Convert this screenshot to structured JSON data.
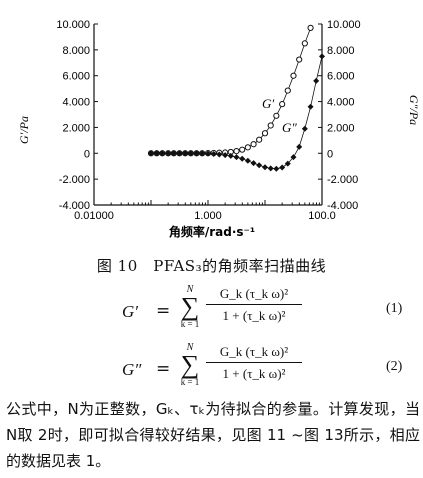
{
  "chart_data": {
    "type": "scatter",
    "x_scale": "log",
    "xlim": [
      0.01,
      100
    ],
    "ylim": [
      -4000,
      10000
    ],
    "x_ticks": [
      "0.01000",
      "1.000",
      "100.0"
    ],
    "y_ticks_left": [
      "-4.000",
      "-2.000",
      "0",
      "2.000",
      "4.000",
      "6.000",
      "8.000",
      "10.000"
    ],
    "y_ticks_right": [
      "-4.000",
      "-2.000",
      "0",
      "2.000",
      "4.000",
      "6.000",
      "8.000",
      "10.000"
    ],
    "xlabel": "角频率/rad·s⁻¹",
    "ylabel_left": "G′/Pa",
    "ylabel_right": "G″/Pa",
    "series": [
      {
        "name": "G′",
        "marker": "open-circle",
        "x": [
          0.1,
          0.126,
          0.158,
          0.2,
          0.251,
          0.316,
          0.398,
          0.5,
          0.63,
          0.79,
          1,
          1.26,
          1.58,
          2,
          2.51,
          3.16,
          3.98,
          5,
          6.3,
          7.9,
          10,
          12.6,
          15.8,
          20,
          25.1,
          31.6,
          39.8,
          50,
          63
        ],
        "y": [
          0,
          0,
          0,
          0,
          0,
          0,
          0,
          0,
          0,
          0,
          10,
          20,
          40,
          60,
          100,
          170,
          280,
          460,
          700,
          1050,
          1550,
          2150,
          2900,
          3800,
          4850,
          6000,
          7250,
          8500,
          9700
        ]
      },
      {
        "name": "G″",
        "marker": "filled-diamond",
        "x": [
          0.1,
          0.126,
          0.158,
          0.2,
          0.251,
          0.316,
          0.398,
          0.5,
          0.63,
          0.79,
          1,
          1.26,
          1.58,
          2,
          2.51,
          3.16,
          3.98,
          5,
          6.3,
          7.9,
          10,
          12.6,
          15.8,
          20,
          25.1,
          31.6,
          39.8,
          50,
          63,
          79,
          100
        ],
        "y": [
          0,
          0,
          0,
          0,
          0,
          0,
          0,
          0,
          0,
          -10,
          -30,
          -60,
          -90,
          -140,
          -200,
          -300,
          -420,
          -580,
          -760,
          -930,
          -1080,
          -1170,
          -1200,
          -1100,
          -800,
          -300,
          500,
          1900,
          3600,
          5600,
          7500
        ]
      }
    ],
    "annotations": [
      "G′",
      "G″"
    ]
  },
  "caption": "图 10　PFAS₃的角频率扫描曲线",
  "eq1": {
    "lhs": "G′",
    "eq": "=",
    "n": "N",
    "k": "k = 1",
    "num": "G_k (τ_k ω)²",
    "den": "1 + (τ_k ω)²",
    "no": "(1)"
  },
  "eq2": {
    "lhs": "G″",
    "eq": "=",
    "n": "N",
    "k": "k = 1",
    "num": "G_k (τ_k ω)²",
    "den": "1 + (τ_k ω)²",
    "no": "(2)"
  },
  "paragraph": "公式中，N为正整数，Gₖ、τₖ为待拟合的参量。计算发现，当 N取 2时，即可拟合得较好结果，见图 11 ~图 13所示，相应的数据见表 1。"
}
